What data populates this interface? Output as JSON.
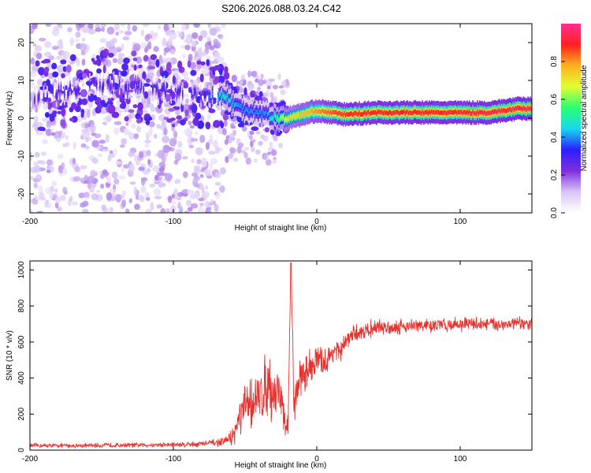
{
  "title": "S206.2026.088.03.24.C42",
  "colors": {
    "snr_line": "#e8322f",
    "frame": "#000000"
  },
  "chart_data": [
    {
      "type": "heatmap",
      "id": "spectrogram",
      "xlabel": "Height of straight line (km)",
      "ylabel": "Frequency (Hz)",
      "xlim": [
        -200,
        150
      ],
      "ylim": [
        -25,
        25
      ],
      "xticks": [
        -200,
        -100,
        0,
        100
      ],
      "yticks": [
        -20,
        -10,
        0,
        10,
        20
      ],
      "colorbar": {
        "label": "Normalized spectral amplitude",
        "range": [
          0,
          1
        ],
        "ticks": [
          "0.0",
          "0.2",
          "0.4",
          "0.6",
          "0.8"
        ],
        "stops": [
          "#ffffff",
          "#d8c6f5",
          "#7f2ee0",
          "#2a20ff",
          "#18d8f0",
          "#2aff70",
          "#e0ff30",
          "#ffb020",
          "#ff2020",
          "#ff3090"
        ]
      },
      "ridge": {
        "x": [
          -200,
          -180,
          -160,
          -140,
          -120,
          -100,
          -80,
          -65,
          -55,
          -45,
          -35,
          -28,
          -20,
          -10,
          0,
          10,
          20,
          40,
          60,
          80,
          100,
          120,
          140,
          150
        ],
        "freq": [
          5,
          7,
          8,
          9,
          8,
          7,
          6,
          6,
          3,
          2,
          1,
          0,
          0,
          1,
          2,
          1.5,
          1,
          1.5,
          1.5,
          1.5,
          1.5,
          1.5,
          2.5,
          2.5
        ],
        "amplitude": [
          0.3,
          0.3,
          0.3,
          0.3,
          0.3,
          0.3,
          0.3,
          0.5,
          0.4,
          0.4,
          0.4,
          0.55,
          0.7,
          0.75,
          0.8,
          0.85,
          0.88,
          0.9,
          0.9,
          0.9,
          0.9,
          0.92,
          0.93,
          0.93
        ]
      }
    },
    {
      "type": "line",
      "id": "snr",
      "xlabel": "Height of straight line (km)",
      "ylabel": "SNR (10 * v/v)",
      "xlim": [
        -200,
        150
      ],
      "ylim": [
        0,
        1050
      ],
      "xticks": [
        -200,
        -100,
        0,
        100
      ],
      "yticks": [
        0,
        200,
        400,
        600,
        800,
        1000
      ],
      "series": [
        {
          "name": "SNR",
          "x": [
            -200,
            -180,
            -160,
            -140,
            -120,
            -100,
            -80,
            -65,
            -58,
            -54,
            -50,
            -46,
            -42,
            -38,
            -34,
            -30,
            -26,
            -22,
            -20,
            -18,
            -16,
            -14,
            -12,
            -8,
            -4,
            0,
            4,
            8,
            12,
            16,
            20,
            24,
            28,
            32,
            36,
            40,
            50,
            60,
            80,
            100,
            120,
            140,
            150
          ],
          "y": [
            25,
            25,
            25,
            28,
            28,
            30,
            35,
            45,
            80,
            170,
            230,
            280,
            260,
            320,
            380,
            300,
            350,
            120,
            150,
            1040,
            280,
            320,
            400,
            430,
            470,
            500,
            480,
            500,
            560,
            540,
            600,
            630,
            650,
            660,
            670,
            680,
            680,
            690,
            690,
            700,
            700,
            700,
            700
          ],
          "spread": [
            15,
            15,
            15,
            15,
            15,
            18,
            20,
            25,
            60,
            120,
            150,
            180,
            170,
            200,
            220,
            180,
            200,
            80,
            80,
            60,
            150,
            120,
            120,
            120,
            120,
            110,
            100,
            90,
            80,
            70,
            60,
            60,
            55,
            55,
            55,
            55,
            50,
            50,
            45,
            45,
            45,
            45,
            45
          ]
        }
      ]
    }
  ]
}
